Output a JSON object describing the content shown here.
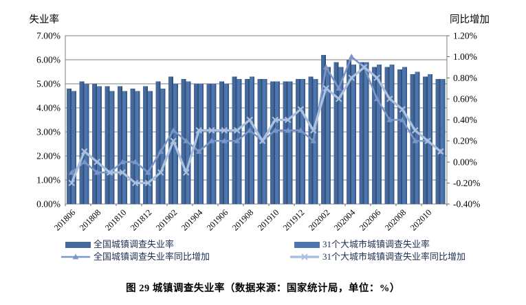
{
  "figure": {
    "caption": "图 29 城镇调查失业率（数据来源：国家统计局，单位：%）"
  },
  "chart_data": {
    "type": "bar+line",
    "grid": true,
    "legend_position": "bottom",
    "left_axis": {
      "title": "失业率",
      "min": 0,
      "max": 7,
      "step": 1,
      "tick_labels": [
        "0.00%",
        "1.00%",
        "2.00%",
        "3.00%",
        "4.00%",
        "5.00%",
        "6.00%",
        "7.00%"
      ]
    },
    "right_axis": {
      "title": "同比增加",
      "min": -0.4,
      "max": 1.2,
      "step": 0.2,
      "tick_labels": [
        "-0.40%",
        "-0.20%",
        "0.00%",
        "0.20%",
        "0.40%",
        "0.60%",
        "0.80%",
        "1.00%",
        "1.20%"
      ]
    },
    "categories": [
      "201806",
      "201807",
      "201808",
      "201809",
      "201810",
      "201811",
      "201812",
      "201901",
      "201902",
      "201903",
      "201904",
      "201905",
      "201906",
      "201907",
      "201908",
      "201909",
      "201910",
      "201911",
      "201912",
      "202001",
      "202002",
      "202003",
      "202004",
      "202005",
      "202006",
      "202007",
      "202008",
      "202009",
      "202010",
      "202011"
    ],
    "x_tick_labels": [
      "201806",
      "201808",
      "201810",
      "201812",
      "201902",
      "201904",
      "201906",
      "201908",
      "201910",
      "201912",
      "202002",
      "202004",
      "202006",
      "202008",
      "202010"
    ],
    "series": [
      {
        "name": "全国城镇调查失业率",
        "type": "bar",
        "axis": "left",
        "color": "#46699c",
        "shade": "#33507c",
        "values": [
          4.8,
          5.1,
          5.0,
          4.9,
          4.9,
          4.8,
          4.9,
          5.1,
          5.3,
          5.2,
          5.0,
          5.0,
          5.1,
          5.3,
          5.2,
          5.2,
          5.1,
          5.1,
          5.2,
          5.3,
          6.2,
          5.9,
          6.0,
          5.9,
          5.7,
          5.7,
          5.6,
          5.4,
          5.3,
          5.2
        ]
      },
      {
        "name": "31个大城市城镇调查失业率",
        "type": "bar",
        "axis": "left",
        "color": "#4d76ae",
        "shade": "#3a5c8c",
        "values": [
          4.7,
          5.0,
          4.9,
          4.7,
          4.7,
          4.7,
          4.7,
          4.8,
          5.0,
          5.1,
          5.0,
          5.0,
          5.0,
          5.2,
          5.3,
          5.2,
          5.1,
          5.1,
          5.2,
          5.2,
          5.7,
          5.7,
          5.8,
          5.9,
          5.8,
          5.8,
          5.7,
          5.5,
          5.4,
          5.2
        ]
      },
      {
        "name": "全国城镇调查失业率同比增加",
        "type": "line",
        "marker": "triangle",
        "axis": "right",
        "color": "#7b96c9",
        "values": [
          -0.1,
          0.0,
          -0.1,
          -0.1,
          0.0,
          0.0,
          -0.1,
          0.1,
          0.3,
          0.2,
          0.1,
          0.2,
          0.2,
          0.2,
          0.3,
          0.2,
          0.3,
          0.3,
          0.3,
          0.2,
          0.9,
          0.7,
          1.0,
          0.9,
          0.6,
          0.4,
          0.4,
          0.2,
          0.2,
          0.1
        ]
      },
      {
        "name": "31个大城市城镇调查失业率同比增加",
        "type": "line",
        "marker": "x",
        "axis": "right",
        "color": "#abc0de",
        "values": [
          -0.2,
          0.1,
          0.0,
          -0.1,
          -0.1,
          -0.2,
          -0.2,
          -0.1,
          0.2,
          -0.1,
          0.3,
          0.3,
          0.3,
          0.3,
          0.4,
          0.2,
          0.4,
          0.4,
          0.5,
          0.3,
          0.7,
          0.6,
          0.8,
          0.9,
          0.8,
          0.6,
          0.5,
          0.3,
          0.2,
          0.1
        ]
      }
    ]
  }
}
